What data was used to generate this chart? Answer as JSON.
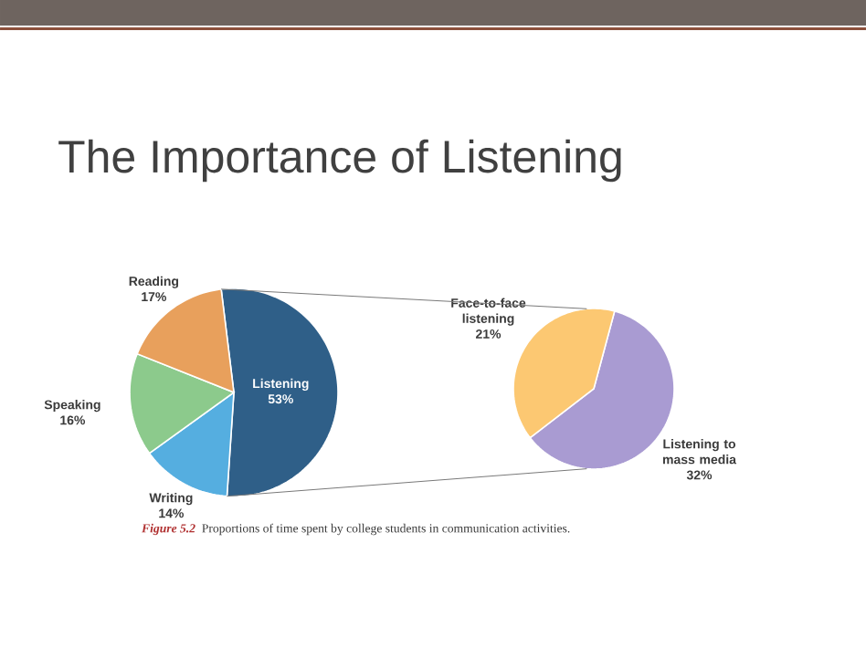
{
  "chart_data": [
    {
      "type": "pie",
      "title": "The Importance of Listening",
      "categories": [
        "Listening",
        "Writing",
        "Speaking",
        "Reading"
      ],
      "values": [
        53,
        14,
        16,
        17
      ],
      "value_labels": [
        "53%",
        "14%",
        "16%",
        "17%"
      ],
      "colors": [
        "#2f5f88",
        "#55aee0",
        "#8cca8c",
        "#e8a05c"
      ],
      "annotations": [
        "Figure 5.2",
        "Proportions of time spent by college students in communication activities."
      ]
    },
    {
      "type": "pie",
      "categories": [
        "Listening to mass media",
        "Face-to-face listening"
      ],
      "values": [
        32,
        21
      ],
      "value_labels": [
        "32%",
        "21%"
      ],
      "colors": [
        "#a99bd2",
        "#fcc872"
      ]
    }
  ]
}
